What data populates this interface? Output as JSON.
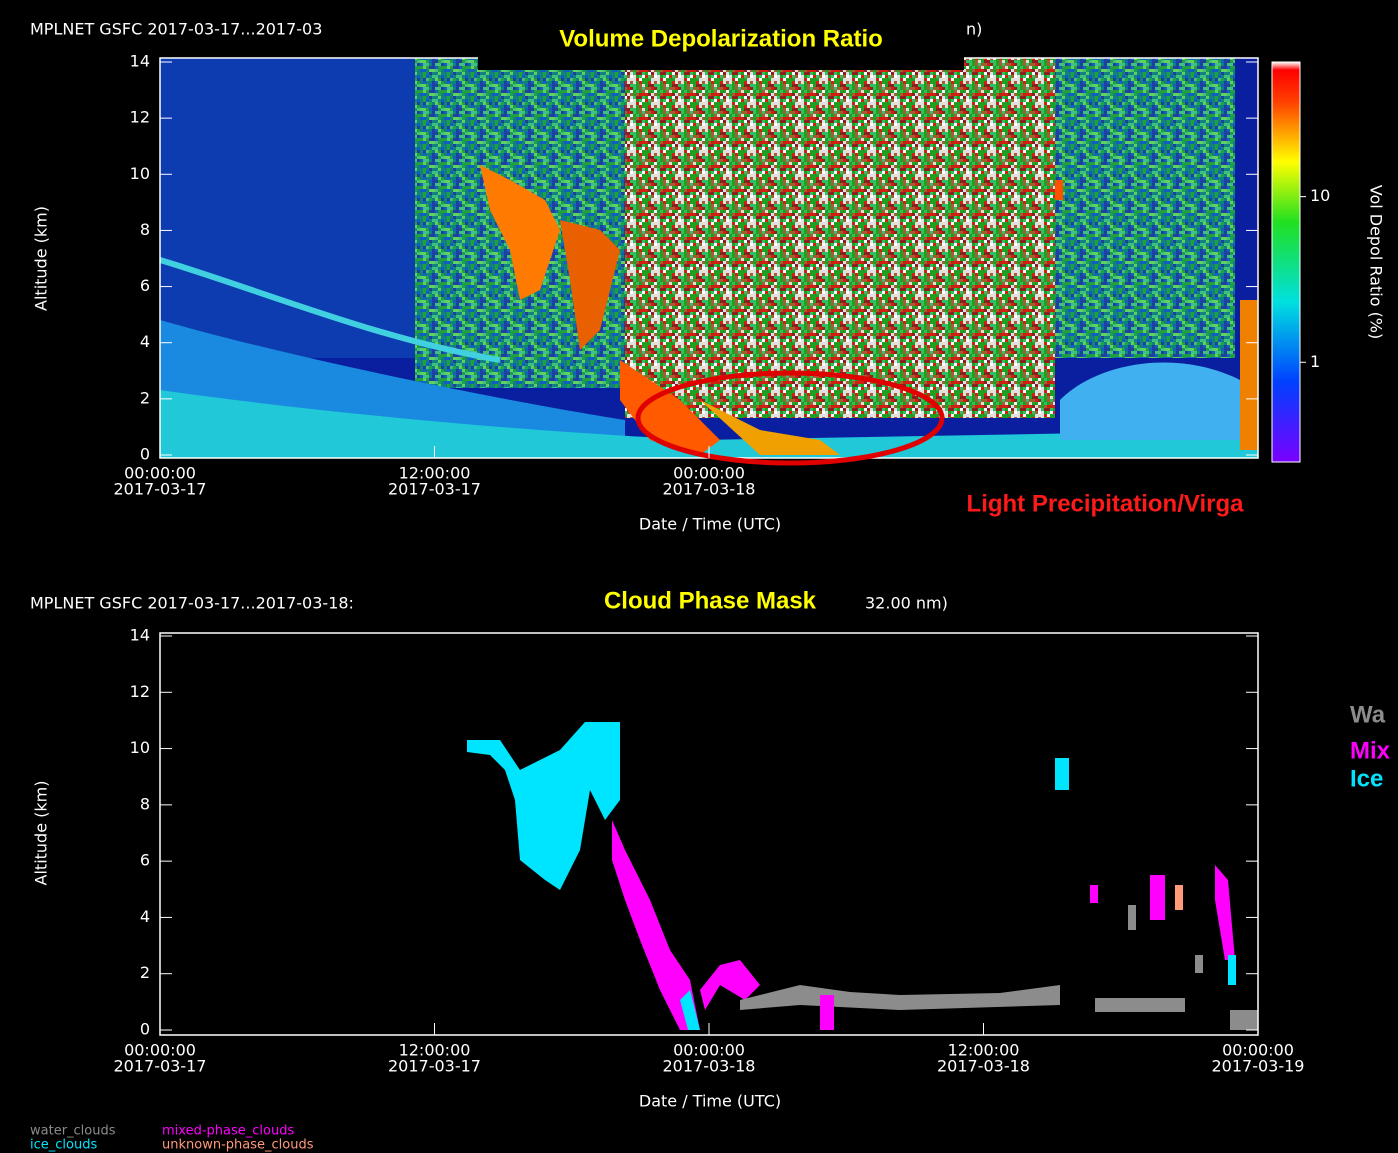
{
  "chart_data": [
    {
      "type": "depol-image",
      "title_parts": [
        "MPLNET GSFC 2017-03-17...2017-03",
        "n)"
      ],
      "annotations": [
        {
          "text": "Volume Depolarization Ratio",
          "color": "#ffff00"
        },
        {
          "text": "Light Precipitation/Virga",
          "color": "#ff1a1a"
        }
      ],
      "ylabel": "Altitude (km)",
      "xlabel": "Date / Time (UTC)",
      "xlim": [
        0,
        48
      ],
      "ylim": [
        0,
        14
      ],
      "yticks": [
        0,
        2,
        4,
        6,
        8,
        10,
        12,
        14
      ],
      "xticks": [
        {
          "value": 0,
          "label": [
            "00:00:00",
            "2017-03-17"
          ]
        },
        {
          "value": 12,
          "label": [
            "12:00:00",
            "2017-03-17"
          ]
        },
        {
          "value": 24,
          "label": [
            "00:00:00",
            "2017-03-18"
          ]
        }
      ],
      "colorbar": {
        "label": "Vol Depol Ratio (%)",
        "log": true,
        "lim": [
          0.25,
          65
        ],
        "ticks": [
          1,
          10
        ]
      }
    },
    {
      "type": "phase-mask",
      "title_parts": [
        "MPLNET GSFC 2017-03-17...2017-03-18:",
        "32.00 nm)"
      ],
      "annotations": [
        {
          "text": "Cloud Phase Mask",
          "color": "#ffff00"
        },
        {
          "text": "Wa",
          "color": "#8c8c8c"
        },
        {
          "text": "Mix",
          "color": "#ff00ff"
        },
        {
          "text": "Ice",
          "color": "#00e5ff"
        }
      ],
      "ylabel": "Altitude (km)",
      "xlabel": "Date / Time (UTC)",
      "xlim": [
        0,
        48
      ],
      "ylim": [
        0,
        14
      ],
      "yticks": [
        0,
        2,
        4,
        6,
        8,
        10,
        12,
        14
      ],
      "xticks": [
        {
          "value": 0,
          "label": [
            "00:00:00",
            "2017-03-17"
          ]
        },
        {
          "value": 12,
          "label": [
            "12:00:00",
            "2017-03-17"
          ]
        },
        {
          "value": 24,
          "label": [
            "00:00:00",
            "2017-03-18"
          ]
        },
        {
          "value": 36,
          "label": [
            "12:00:00",
            "2017-03-18"
          ]
        },
        {
          "value": 48,
          "label": [
            "00:00:00",
            "2017-03-19"
          ]
        }
      ],
      "series": [
        {
          "name": "water_clouds",
          "color": "#8c8c8c"
        },
        {
          "name": "mixed-phase_clouds",
          "color": "#ff00ff"
        },
        {
          "name": "ice_clouds",
          "color": "#00e5ff"
        },
        {
          "name": "unknown-phase_clouds",
          "color": "#ff9a7a"
        }
      ]
    }
  ]
}
